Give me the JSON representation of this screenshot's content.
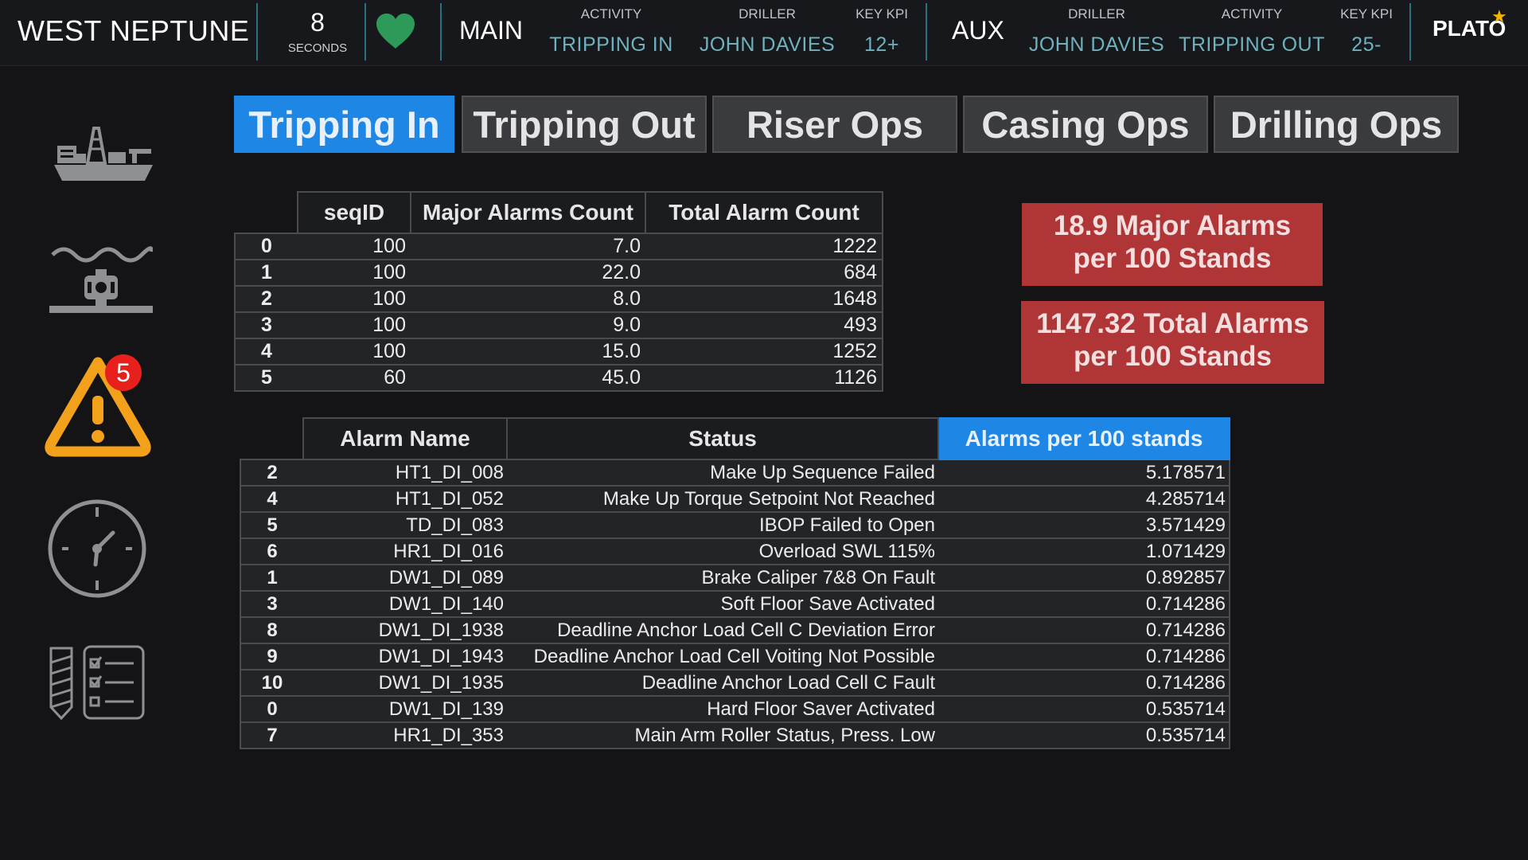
{
  "header": {
    "rig_name": "WEST NEPTUNE",
    "timer": {
      "value": "8",
      "unit": "SECONDS"
    },
    "status_icon": "heart-icon",
    "main": {
      "label": "MAIN",
      "activity_label": "ACTIVITY",
      "activity_value": "TRIPPING IN",
      "driller_label": "DRILLER",
      "driller_value": "JOHN DAVIES",
      "kpi_label": "KEY KPI",
      "kpi_value": "12+"
    },
    "aux": {
      "label": "AUX",
      "driller_label": "DRILLER",
      "driller_value": "JOHN DAVIES",
      "activity_label": "ACTIVITY",
      "activity_value": "TRIPPING OUT",
      "kpi_label": "KEY KPI",
      "kpi_value": "25-"
    },
    "logo": "PLATO"
  },
  "sidebar": {
    "icons": [
      "drillship-icon",
      "subsea-bop-icon",
      "warning-icon",
      "clock-icon",
      "checklist-icon"
    ],
    "alarm_badge": "5"
  },
  "tabs": [
    {
      "label": "Tripping In",
      "active": true
    },
    {
      "label": "Tripping Out",
      "active": false
    },
    {
      "label": "Riser Ops",
      "active": false
    },
    {
      "label": "Casing Ops",
      "active": false
    },
    {
      "label": "Drilling Ops",
      "active": false
    }
  ],
  "seq_table": {
    "headers": [
      "seqID",
      "Major Alarms Count",
      "Total Alarm Count"
    ],
    "rows": [
      {
        "idx": "0",
        "seqID": "100",
        "major": "7.0",
        "total": "1222"
      },
      {
        "idx": "1",
        "seqID": "100",
        "major": "22.0",
        "total": "684"
      },
      {
        "idx": "2",
        "seqID": "100",
        "major": "8.0",
        "total": "1648"
      },
      {
        "idx": "3",
        "seqID": "100",
        "major": "9.0",
        "total": "493"
      },
      {
        "idx": "4",
        "seqID": "100",
        "major": "15.0",
        "total": "1252"
      },
      {
        "idx": "5",
        "seqID": "60",
        "major": "45.0",
        "total": "1126"
      }
    ]
  },
  "kpi_boxes": {
    "major_line1": "18.9 Major Alarms",
    "major_line2": "per 100 Stands",
    "total_line1": "1147.32 Total Alarms",
    "total_line2": "per 100 Stands",
    "color": "#b03536"
  },
  "alarm_table": {
    "headers": [
      "Alarm Name",
      "Status",
      "Alarms per 100 stands"
    ],
    "rows": [
      {
        "idx": "2",
        "name": "HT1_DI_008",
        "status": "Make Up Sequence Failed",
        "rate": "5.178571"
      },
      {
        "idx": "4",
        "name": "HT1_DI_052",
        "status": "Make Up Torque Setpoint Not Reached",
        "rate": "4.285714"
      },
      {
        "idx": "5",
        "name": "TD_DI_083",
        "status": "IBOP Failed to Open",
        "rate": "3.571429"
      },
      {
        "idx": "6",
        "name": "HR1_DI_016",
        "status": "Overload SWL 115%",
        "rate": "1.071429"
      },
      {
        "idx": "1",
        "name": "DW1_DI_089",
        "status": "Brake Caliper 7&8 On Fault",
        "rate": "0.892857"
      },
      {
        "idx": "3",
        "name": "DW1_DI_140",
        "status": "Soft Floor Save Activated",
        "rate": "0.714286"
      },
      {
        "idx": "8",
        "name": "DW1_DI_1938",
        "status": "Deadline Anchor Load Cell C Deviation Error",
        "rate": "0.714286"
      },
      {
        "idx": "9",
        "name": "DW1_DI_1943",
        "status": "Deadline Anchor Load Cell Voiting Not Possible",
        "rate": "0.714286"
      },
      {
        "idx": "10",
        "name": "DW1_DI_1935",
        "status": "Deadline Anchor Load Cell C Fault",
        "rate": "0.714286"
      },
      {
        "idx": "0",
        "name": "DW1_DI_139",
        "status": "Hard Floor Saver Activated",
        "rate": "0.535714"
      },
      {
        "idx": "7",
        "name": "HR1_DI_353",
        "status": "Main Arm Roller Status, Press. Low",
        "rate": "0.535714"
      }
    ]
  },
  "colors": {
    "accent": "#1e87e5",
    "header_value": "#6fb2be",
    "alarm_kpi": "#b03536",
    "heart": "#2e9a5a",
    "warning": "#f3a01b",
    "badge": "#e8201c"
  }
}
